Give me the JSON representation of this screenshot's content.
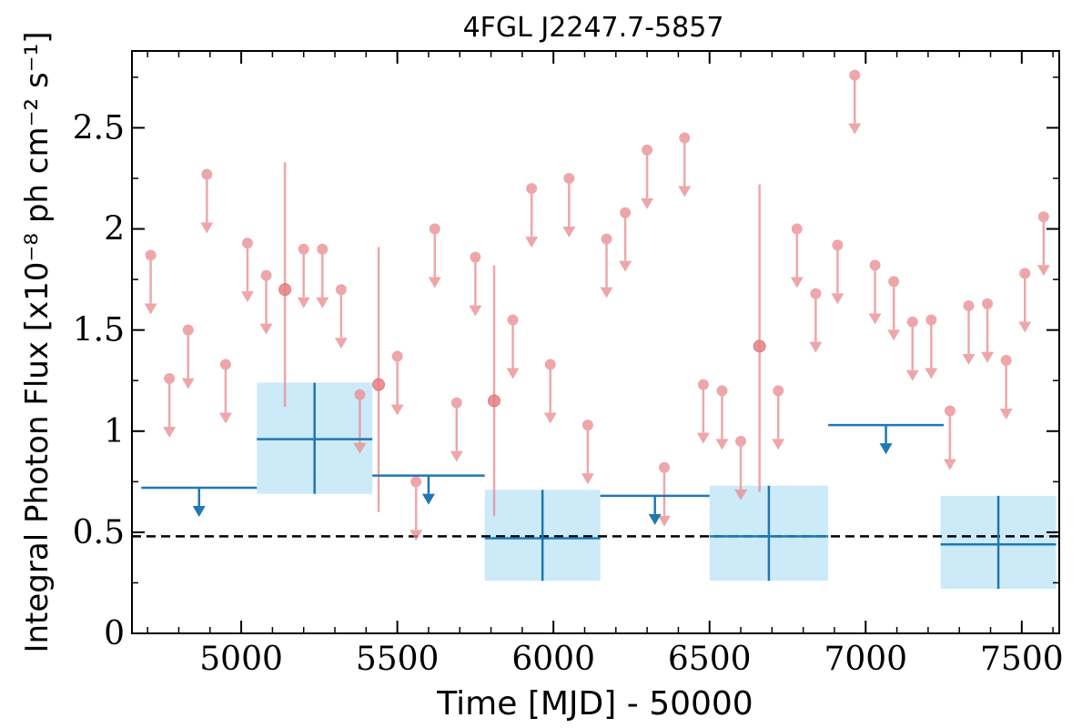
{
  "chart_data": {
    "type": "scatter",
    "title": "4FGL J2247.7-5857",
    "xlabel": "Time [MJD] - 50000",
    "ylabel": "Integral Photon Flux [x10⁻⁸ ph cm⁻² s⁻¹]",
    "xlim": [
      4650,
      7620
    ],
    "ylim": [
      0,
      2.88
    ],
    "x_ticks": [
      5000,
      5500,
      6000,
      6500,
      7000,
      7500
    ],
    "x_tick_labels": [
      "5000",
      "5500",
      "6000",
      "6500",
      "7000",
      "7500"
    ],
    "y_ticks": [
      0,
      0.5,
      1,
      1.5,
      2,
      2.5
    ],
    "y_tick_labels": [
      "0",
      "0.5",
      "1",
      "1.5",
      "2",
      "2.5"
    ],
    "grid": false,
    "reference_line": {
      "y": 0.48,
      "style": "dashed",
      "color": "#000000"
    },
    "colors": {
      "short_bins": "#e88a8e",
      "long_bins": "#1f77b4",
      "long_bin_band": "#cdeaf9"
    },
    "series": [
      {
        "marker": "arrow-down",
        "color": "#e88a8e",
        "points": [
          {
            "x": 4710,
            "y": 1.87
          },
          {
            "x": 4770,
            "y": 1.26
          },
          {
            "x": 4830,
            "y": 1.5
          },
          {
            "x": 4890,
            "y": 2.27
          },
          {
            "x": 4950,
            "y": 1.33
          },
          {
            "x": 5020,
            "y": 1.93
          },
          {
            "x": 5080,
            "y": 1.77
          },
          {
            "x": 5200,
            "y": 1.9
          },
          {
            "x": 5260,
            "y": 1.9
          },
          {
            "x": 5320,
            "y": 1.7
          },
          {
            "x": 5380,
            "y": 1.18
          },
          {
            "x": 5500,
            "y": 1.37
          },
          {
            "x": 5560,
            "y": 0.75
          },
          {
            "x": 5620,
            "y": 2.0
          },
          {
            "x": 5690,
            "y": 1.14
          },
          {
            "x": 5750,
            "y": 1.86
          },
          {
            "x": 5870,
            "y": 1.55
          },
          {
            "x": 5930,
            "y": 2.2
          },
          {
            "x": 5990,
            "y": 1.33
          },
          {
            "x": 6050,
            "y": 2.25
          },
          {
            "x": 6110,
            "y": 1.03
          },
          {
            "x": 6170,
            "y": 1.95
          },
          {
            "x": 6230,
            "y": 2.08
          },
          {
            "x": 6300,
            "y": 2.39
          },
          {
            "x": 6355,
            "y": 0.82
          },
          {
            "x": 6420,
            "y": 2.45
          },
          {
            "x": 6480,
            "y": 1.23
          },
          {
            "x": 6540,
            "y": 1.2
          },
          {
            "x": 6600,
            "y": 0.95
          },
          {
            "x": 6720,
            "y": 1.2
          },
          {
            "x": 6780,
            "y": 2.0
          },
          {
            "x": 6840,
            "y": 1.68
          },
          {
            "x": 6910,
            "y": 1.92
          },
          {
            "x": 6965,
            "y": 2.76
          },
          {
            "x": 7030,
            "y": 1.82
          },
          {
            "x": 7090,
            "y": 1.74
          },
          {
            "x": 7150,
            "y": 1.54
          },
          {
            "x": 7210,
            "y": 1.55
          },
          {
            "x": 7270,
            "y": 1.1
          },
          {
            "x": 7330,
            "y": 1.62
          },
          {
            "x": 7390,
            "y": 1.63
          },
          {
            "x": 7450,
            "y": 1.35
          },
          {
            "x": 7510,
            "y": 1.78
          },
          {
            "x": 7570,
            "y": 2.06
          }
        ]
      },
      {
        "marker": "errorbar",
        "color": "#e88a8e",
        "points": [
          {
            "x": 5140,
            "y": 1.7,
            "ylow": 1.12,
            "yhigh": 2.33
          },
          {
            "x": 5440,
            "y": 1.23,
            "ylow": 0.6,
            "yhigh": 1.91
          },
          {
            "x": 5810,
            "y": 1.15,
            "ylow": 0.58,
            "yhigh": 1.82
          },
          {
            "x": 6660,
            "y": 1.42,
            "ylow": 0.7,
            "yhigh": 2.22
          }
        ]
      },
      {
        "marker": "upper-limit-bin",
        "color": "#1f77b4",
        "points": [
          {
            "x0": 4680,
            "x1": 5050,
            "y": 0.72
          },
          {
            "x0": 5420,
            "x1": 5780,
            "y": 0.78
          },
          {
            "x0": 6150,
            "x1": 6500,
            "y": 0.68
          },
          {
            "x0": 6880,
            "x1": 7250,
            "y": 1.03
          }
        ]
      },
      {
        "marker": "band-bin",
        "color": "#1f77b4",
        "points": [
          {
            "x0": 5050,
            "x1": 5420,
            "y": 0.96,
            "ylow": 0.69,
            "yhigh": 1.24
          },
          {
            "x0": 5780,
            "x1": 6150,
            "y": 0.47,
            "ylow": 0.26,
            "yhigh": 0.71
          },
          {
            "x0": 6500,
            "x1": 6880,
            "y": 0.48,
            "ylow": 0.26,
            "yhigh": 0.73
          },
          {
            "x0": 7240,
            "x1": 7610,
            "y": 0.44,
            "ylow": 0.22,
            "yhigh": 0.68
          }
        ]
      }
    ]
  }
}
